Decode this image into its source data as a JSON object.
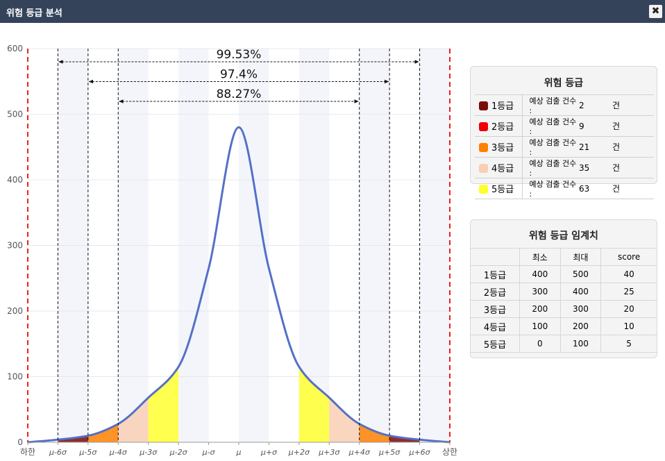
{
  "window": {
    "title": "위험 등급 분석",
    "close_icon": "close-icon"
  },
  "chart_data": {
    "type": "area",
    "title": "",
    "ylim": [
      0,
      600
    ],
    "yticks": [
      0,
      100,
      200,
      300,
      400,
      500,
      600
    ],
    "x_ticks": [
      "하한",
      "μ-6σ",
      "μ-5σ",
      "μ-4σ",
      "μ-3σ",
      "μ-2σ",
      "μ-σ",
      "μ",
      "μ+σ",
      "μ+2σ",
      "μ+3σ",
      "μ+4σ",
      "μ+5σ",
      "μ+6σ",
      "상한"
    ],
    "x_range_sigma": [
      -7,
      7
    ],
    "curve": {
      "x_sigma": [
        -7,
        -6,
        -5,
        -4,
        -3,
        -2,
        -1,
        0,
        1,
        2,
        3,
        4,
        5,
        6,
        7
      ],
      "y": [
        0,
        4,
        10,
        28,
        68,
        115,
        265,
        480,
        265,
        115,
        68,
        28,
        10,
        4,
        0
      ]
    },
    "curve_color": "#5470c6",
    "limit_line_color": "#e8211c",
    "grade_regions": [
      {
        "from": -6,
        "to": -5,
        "grade": "1등급"
      },
      {
        "from": -5,
        "to": -4,
        "grade": "3등급"
      },
      {
        "from": -4,
        "to": -3,
        "grade": "4등급"
      },
      {
        "from": -3,
        "to": -2,
        "grade": "5등급"
      },
      {
        "from": 2,
        "to": 3,
        "grade": "5등급"
      },
      {
        "from": 3,
        "to": 4,
        "grade": "4등급"
      },
      {
        "from": 4,
        "to": 5,
        "grade": "3등급"
      },
      {
        "from": 5,
        "to": 6,
        "grade": "1등급"
      }
    ],
    "coverage_spans": [
      {
        "label": "99.53%",
        "from": -6,
        "to": 6
      },
      {
        "label": "97.4%",
        "from": -5,
        "to": 5
      },
      {
        "label": "88.27%",
        "from": -4,
        "to": 4
      }
    ],
    "vertical_dashed_at_sigma": [
      -6,
      -5,
      -4,
      4,
      5,
      6
    ],
    "limit_lines_at_sigma": [
      -7,
      7
    ]
  },
  "grade_panel": {
    "title": "위험 등급",
    "count_label": "예상 검출 건수 :",
    "unit": "건",
    "grades": [
      {
        "name": "1등급",
        "color": "#7a0a0a",
        "count": "2"
      },
      {
        "name": "2등급",
        "color": "#f00000",
        "count": "9"
      },
      {
        "name": "3등급",
        "color": "#ff8000",
        "count": "21"
      },
      {
        "name": "4등급",
        "color": "#f9cfb4",
        "count": "35"
      },
      {
        "name": "5등급",
        "color": "#ffff30",
        "count": "63"
      }
    ]
  },
  "threshold_panel": {
    "title": "위험 등급 임계치",
    "headers": [
      "",
      "최소",
      "최대",
      "score"
    ],
    "rows": [
      {
        "grade": "1등급",
        "min": "400",
        "max": "500",
        "score": "40"
      },
      {
        "grade": "2등급",
        "min": "300",
        "max": "400",
        "score": "25"
      },
      {
        "grade": "3등급",
        "min": "200",
        "max": "300",
        "score": "20"
      },
      {
        "grade": "4등급",
        "min": "100",
        "max": "200",
        "score": "10"
      },
      {
        "grade": "5등급",
        "min": "0",
        "max": "100",
        "score": "5"
      }
    ]
  }
}
